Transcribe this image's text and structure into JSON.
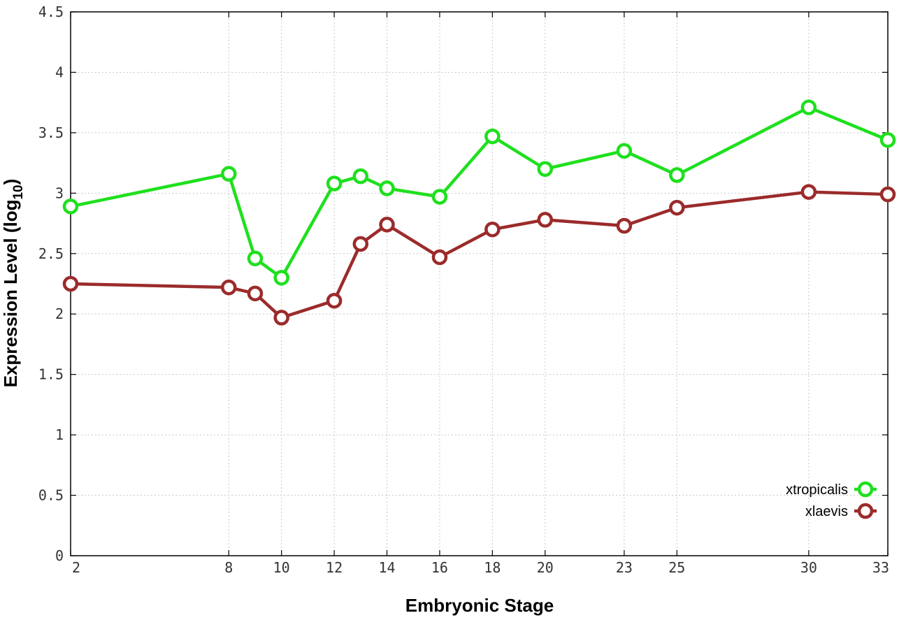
{
  "chart_data": {
    "type": "line",
    "xlabel": "Embryonic Stage",
    "ylabel_main": "Expression Level (log",
    "ylabel_sub": "10",
    "ylabel_close": ")",
    "x": [
      2,
      8,
      9,
      10,
      12,
      13,
      14,
      16,
      18,
      20,
      23,
      25,
      30,
      33
    ],
    "xticks": [
      2,
      8,
      10,
      12,
      14,
      16,
      18,
      20,
      23,
      25,
      30,
      33
    ],
    "xtick_labels": [
      "2",
      "8",
      "10",
      "12",
      "14",
      "16",
      "18",
      "20",
      "23",
      "25",
      "30",
      "33"
    ],
    "xlim": [
      2,
      33
    ],
    "yticks": [
      0,
      0.5,
      1,
      1.5,
      2,
      2.5,
      3,
      3.5,
      4,
      4.5
    ],
    "ytick_labels": [
      "0",
      "0.5",
      "1",
      "1.5",
      "2",
      "2.5",
      "3",
      "3.5",
      "4",
      "4.5"
    ],
    "ylim": [
      0,
      4.5
    ],
    "grid": true,
    "legend_position": "bottom-right",
    "series": [
      {
        "name": "xtropicalis",
        "color": "#1ee01e",
        "values": [
          2.89,
          3.16,
          2.46,
          2.3,
          3.08,
          3.14,
          3.04,
          2.97,
          3.47,
          3.2,
          3.35,
          3.15,
          3.71,
          3.44
        ]
      },
      {
        "name": "xlaevis",
        "color": "#9b2b2b",
        "values": [
          2.25,
          2.22,
          2.17,
          1.97,
          2.11,
          2.58,
          2.74,
          2.47,
          2.7,
          2.78,
          2.73,
          2.88,
          3.01,
          2.99
        ]
      }
    ]
  }
}
